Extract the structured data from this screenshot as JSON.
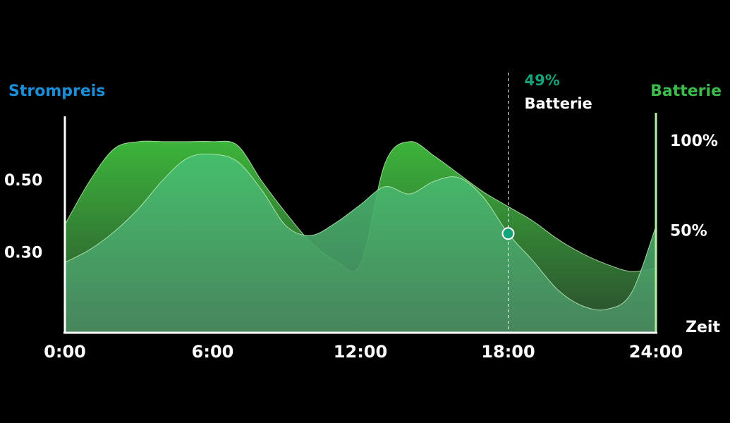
{
  "chart_data": {
    "type": "area",
    "x": [
      0,
      1,
      2,
      3,
      4,
      5,
      6,
      7,
      8,
      9,
      10,
      11,
      12,
      13,
      14,
      15,
      16,
      17,
      18,
      19,
      20,
      21,
      22,
      23,
      24
    ],
    "xlim": [
      0,
      24
    ],
    "xticks": [
      {
        "value": 0,
        "label": "0:00"
      },
      {
        "value": 6,
        "label": "6:00"
      },
      {
        "value": 12,
        "label": "12:00"
      },
      {
        "value": 18,
        "label": "18:00"
      },
      {
        "value": 24,
        "label": "24:00"
      }
    ],
    "x_label": "Zeit",
    "y_label": "Strompreis",
    "y2_label": "Batterie",
    "ylim": [
      0.08,
      0.68
    ],
    "yticks": [
      {
        "value": 0.3,
        "label": "0.30"
      },
      {
        "value": 0.5,
        "label": "0.50"
      }
    ],
    "y2lim": [
      -6,
      114
    ],
    "y2ticks": [
      {
        "value": 50,
        "label": "50%"
      },
      {
        "value": 100,
        "label": "100%"
      }
    ],
    "series": [
      {
        "name": "Strompreis",
        "color": "#1a8fd8",
        "values": [
          0.38,
          0.5,
          0.59,
          0.61,
          0.61,
          0.61,
          0.61,
          0.6,
          0.5,
          0.41,
          0.33,
          0.28,
          0.27,
          0.55,
          0.61,
          0.57,
          0.52,
          0.47,
          0.43,
          0.39,
          0.34,
          0.3,
          0.27,
          0.25,
          0.26
        ]
      },
      {
        "name": "Batterie",
        "color": "#3dbb4c",
        "axis": "y2",
        "values": [
          33,
          40,
          50,
          63,
          79,
          91,
          93,
          89,
          73,
          53,
          48,
          55,
          65,
          75,
          71,
          78,
          80,
          69,
          49,
          34,
          18,
          9,
          7,
          16,
          53
        ]
      }
    ],
    "annotation": {
      "x": 18,
      "value": 49,
      "label": "49%",
      "text": "Batterie"
    }
  }
}
